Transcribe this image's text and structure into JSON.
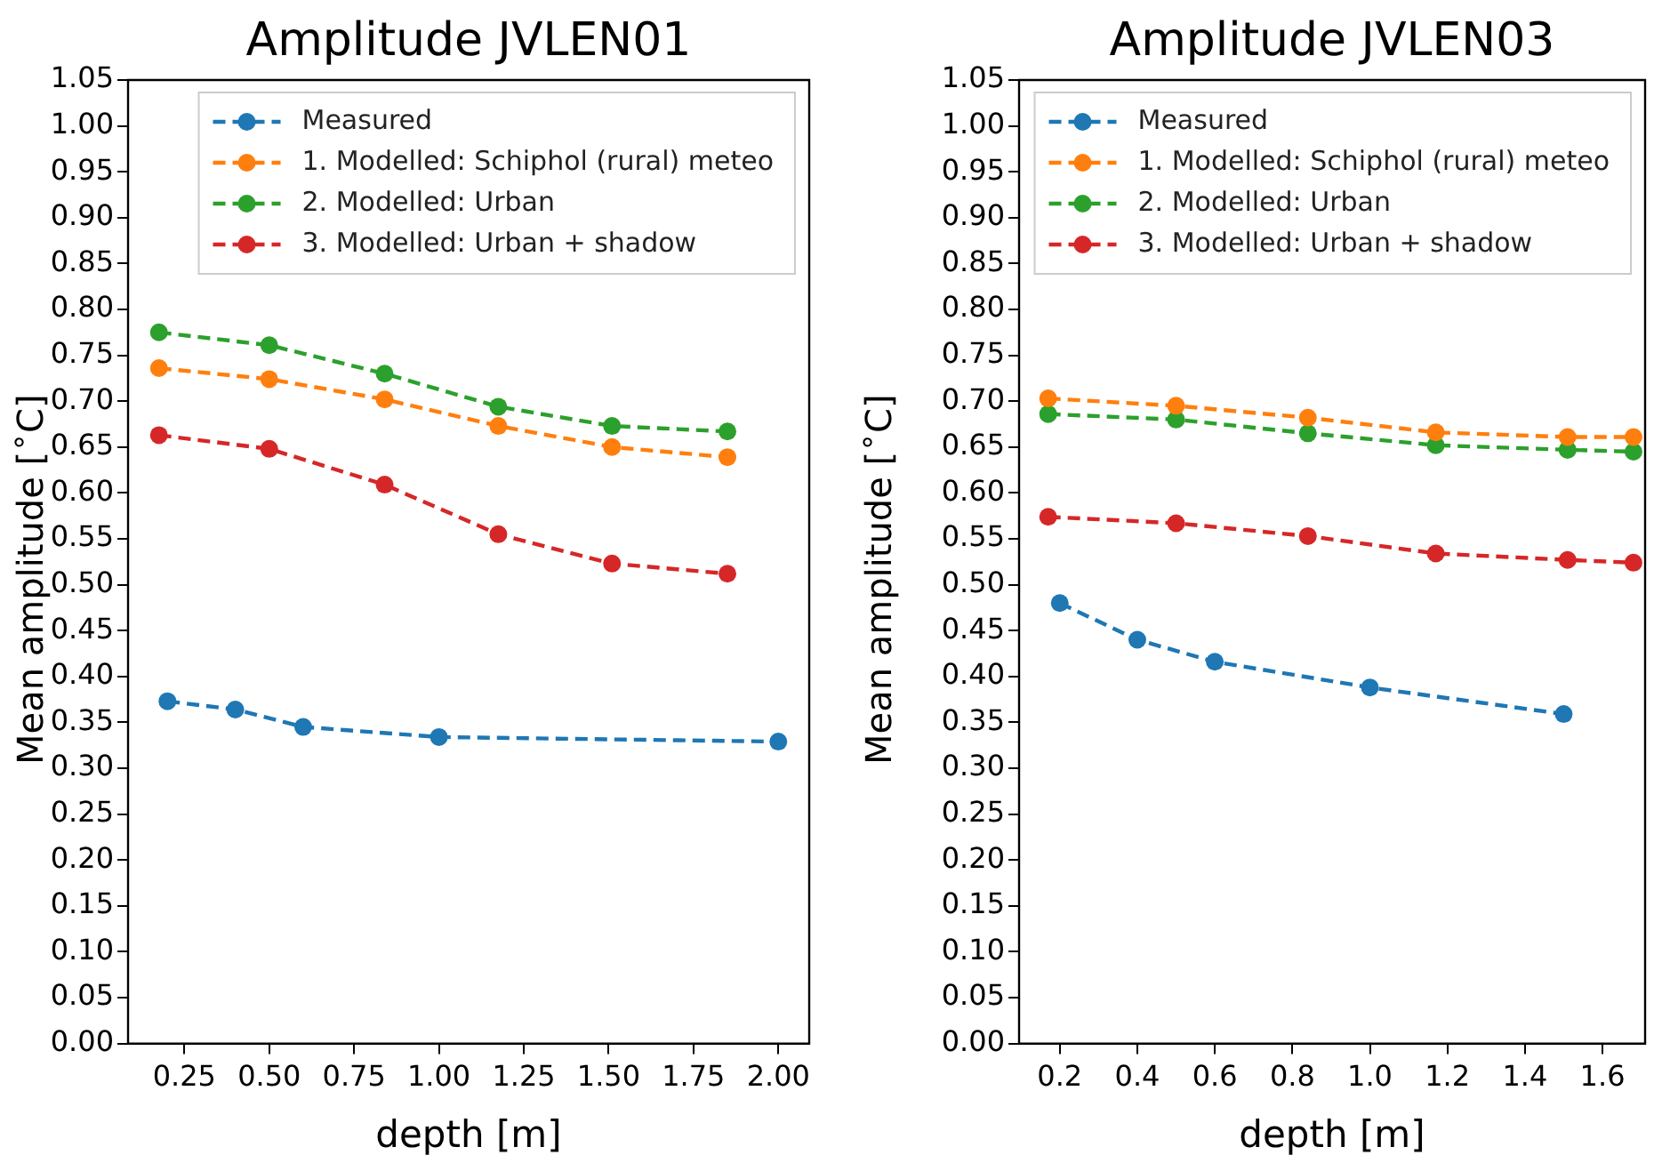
{
  "chart_data": [
    {
      "type": "line",
      "title": "Amplitude JVLEN01",
      "xlabel": "depth [m]",
      "ylabel": "Mean amplitude [$^{∘}$C]",
      "xlim": [
        0.084,
        2.091
      ],
      "xticks": [
        {
          "value": 0.25,
          "label": "0.25"
        },
        {
          "value": 0.5,
          "label": "0.50"
        },
        {
          "value": 0.75,
          "label": "0.75"
        },
        {
          "value": 1,
          "label": "1.00"
        },
        {
          "value": 1.25,
          "label": "1.25"
        },
        {
          "value": 1.5,
          "label": "1.50"
        },
        {
          "value": 1.75,
          "label": "1.75"
        },
        {
          "value": 2,
          "label": "2.00"
        }
      ],
      "ylim": [
        0,
        1.05
      ],
      "yticks": [
        {
          "value": 0,
          "label": "0.00"
        },
        {
          "value": 0.05,
          "label": "0.05"
        },
        {
          "value": 0.1,
          "label": "0.10"
        },
        {
          "value": 0.15,
          "label": "0.15"
        },
        {
          "value": 0.2,
          "label": "0.20"
        },
        {
          "value": 0.25,
          "label": "0.25"
        },
        {
          "value": 0.3,
          "label": "0.30"
        },
        {
          "value": 0.35,
          "label": "0.35"
        },
        {
          "value": 0.4,
          "label": "0.40"
        },
        {
          "value": 0.45,
          "label": "0.45"
        },
        {
          "value": 0.5,
          "label": "0.50"
        },
        {
          "value": 0.55,
          "label": "0.55"
        },
        {
          "value": 0.6,
          "label": "0.60"
        },
        {
          "value": 0.65,
          "label": "0.65"
        },
        {
          "value": 0.7,
          "label": "0.70"
        },
        {
          "value": 0.75,
          "label": "0.75"
        },
        {
          "value": 0.8,
          "label": "0.80"
        },
        {
          "value": 0.85,
          "label": "0.85"
        },
        {
          "value": 0.9,
          "label": "0.90"
        },
        {
          "value": 0.95,
          "label": "0.95"
        },
        {
          "value": 1,
          "label": "1.00"
        },
        {
          "value": 1.05,
          "label": "1.05"
        }
      ],
      "grid": false,
      "legend": "top right",
      "marker": "circle",
      "line_style": "dashed",
      "series": [
        {
          "name": "Measured",
          "color": "#1f77b4",
          "x": [
            0.2,
            0.4,
            0.6,
            1.0,
            2.0
          ],
          "values": [
            0.373,
            0.364,
            0.345,
            0.334,
            0.329
          ]
        },
        {
          "name": "1. Modelled: Schiphol (rural) meteo",
          "color": "#ff7f0e",
          "x": [
            0.175,
            0.5,
            0.84,
            1.175,
            1.51,
            1.85
          ],
          "values": [
            0.736,
            0.724,
            0.702,
            0.673,
            0.65,
            0.639
          ]
        },
        {
          "name": "2. Modelled: Urban",
          "color": "#2ca02c",
          "x": [
            0.175,
            0.5,
            0.84,
            1.175,
            1.51,
            1.85
          ],
          "values": [
            0.775,
            0.761,
            0.73,
            0.694,
            0.673,
            0.667
          ]
        },
        {
          "name": "3. Modelled: Urban + shadow",
          "color": "#d62728",
          "x": [
            0.175,
            0.5,
            0.84,
            1.175,
            1.51,
            1.85
          ],
          "values": [
            0.663,
            0.648,
            0.609,
            0.555,
            0.523,
            0.512
          ]
        }
      ]
    },
    {
      "type": "line",
      "title": "Amplitude JVLEN03",
      "xlabel": "depth [m]",
      "ylabel": "Mean amplitude [$^{∘}$C]",
      "xlim": [
        0.095,
        1.71
      ],
      "xticks": [
        0.2,
        0.4,
        0.6,
        0.8,
        {
          "value": 1,
          "label": "1.0"
        },
        1.2,
        1.4,
        1.6
      ],
      "ylim": [
        0,
        1.05
      ],
      "yticks": [
        {
          "value": 0,
          "label": "0.00"
        },
        {
          "value": 0.05,
          "label": "0.05"
        },
        {
          "value": 0.1,
          "label": "0.10"
        },
        {
          "value": 0.15,
          "label": "0.15"
        },
        {
          "value": 0.2,
          "label": "0.20"
        },
        {
          "value": 0.25,
          "label": "0.25"
        },
        {
          "value": 0.3,
          "label": "0.30"
        },
        {
          "value": 0.35,
          "label": "0.35"
        },
        {
          "value": 0.4,
          "label": "0.40"
        },
        {
          "value": 0.45,
          "label": "0.45"
        },
        {
          "value": 0.5,
          "label": "0.50"
        },
        {
          "value": 0.55,
          "label": "0.55"
        },
        {
          "value": 0.6,
          "label": "0.60"
        },
        {
          "value": 0.65,
          "label": "0.65"
        },
        {
          "value": 0.7,
          "label": "0.70"
        },
        {
          "value": 0.75,
          "label": "0.75"
        },
        {
          "value": 0.8,
          "label": "0.80"
        },
        {
          "value": 0.85,
          "label": "0.85"
        },
        {
          "value": 0.9,
          "label": "0.90"
        },
        {
          "value": 0.95,
          "label": "0.95"
        },
        {
          "value": 1,
          "label": "1.00"
        },
        {
          "value": 1.05,
          "label": "1.05"
        }
      ],
      "grid": false,
      "legend": "top right",
      "marker": "circle",
      "line_style": "dashed",
      "series": [
        {
          "name": "Measured",
          "color": "#1f77b4",
          "x": [
            0.2,
            0.4,
            0.6,
            1.0,
            1.5
          ],
          "values": [
            0.48,
            0.44,
            0.416,
            0.388,
            0.359
          ]
        },
        {
          "name": "1. Modelled: Schiphol (rural) meteo",
          "color": "#ff7f0e",
          "x": [
            0.17,
            0.5,
            0.84,
            1.17,
            1.51,
            1.68
          ],
          "values": [
            0.703,
            0.695,
            0.682,
            0.666,
            0.661,
            0.661
          ]
        },
        {
          "name": "2. Modelled: Urban",
          "color": "#2ca02c",
          "x": [
            0.17,
            0.5,
            0.84,
            1.17,
            1.51,
            1.68
          ],
          "values": [
            0.686,
            0.68,
            0.665,
            0.652,
            0.647,
            0.645
          ]
        },
        {
          "name": "3. Modelled: Urban + shadow",
          "color": "#d62728",
          "x": [
            0.17,
            0.5,
            0.84,
            1.17,
            1.51,
            1.68
          ],
          "values": [
            0.574,
            0.567,
            0.553,
            0.534,
            0.527,
            0.524
          ]
        }
      ]
    }
  ]
}
